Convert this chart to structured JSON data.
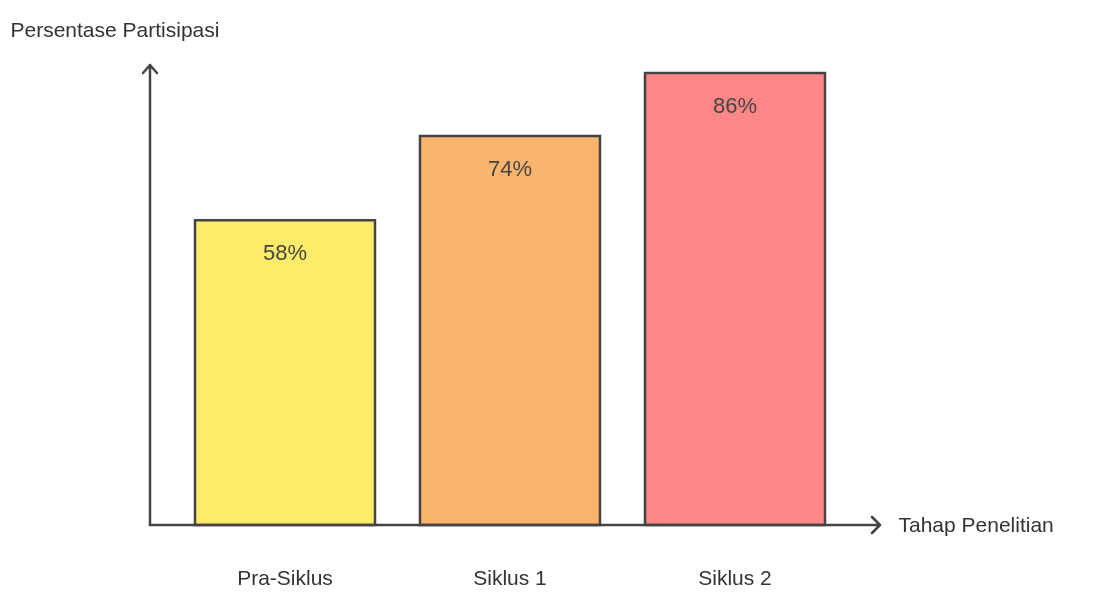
{
  "chart_data": {
    "type": "bar",
    "xlabel": "Tahap Penelitian",
    "ylabel": "Persentase Partisipasi",
    "categories": [
      "Pra-Siklus",
      "Siklus 1",
      "Siklus 2"
    ],
    "values": [
      58,
      74,
      86
    ],
    "colors": [
      "#fdeb6a",
      "#fbb46c",
      "#ff8787"
    ],
    "value_labels": [
      "58%",
      "74%",
      "86%"
    ]
  }
}
